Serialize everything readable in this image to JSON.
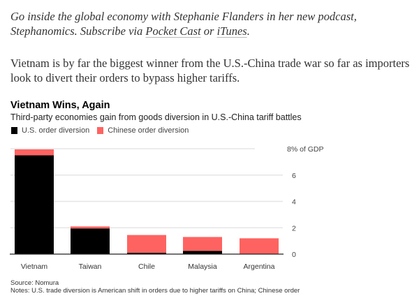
{
  "promo": {
    "text_before": "Go inside the global economy with Stephanie Flanders in her new podcast, Stephanomics. Subscribe via ",
    "link1": "Pocket Cast",
    "text_mid": " or ",
    "link2": "iTunes",
    "text_after": "."
  },
  "lede": "Vietnam is by far the biggest winner from the U.S.-China trade war so far as importers look to divert their orders to bypass higher tariffs.",
  "chart_data": {
    "type": "bar",
    "stacked": true,
    "title": "Vietnam Wins, Again",
    "subtitle": "Third-party economies gain from goods diversion in U.S.-China tariff battles",
    "categories": [
      "Vietnam",
      "Taiwan",
      "Chile",
      "Malaysia",
      "Argentina"
    ],
    "series": [
      {
        "name": "U.S. order diversion",
        "color": "#000000",
        "values": [
          7.5,
          1.95,
          0.1,
          0.25,
          0.0
        ]
      },
      {
        "name": "Chinese order diversion",
        "color": "#ff6361",
        "values": [
          0.45,
          0.15,
          1.35,
          1.05,
          1.2
        ]
      }
    ],
    "ylim": [
      0,
      8
    ],
    "yticks": [
      0,
      2,
      4,
      6,
      8
    ],
    "ytick_labels": [
      "0",
      "2",
      "4",
      "6",
      "8% of GDP"
    ],
    "grid": true,
    "legend": "top-left",
    "source": "Source: Nomura",
    "notes": "Notes: U.S. trade diversion is American shift in orders due to higher tariffs on China; Chinese order"
  }
}
